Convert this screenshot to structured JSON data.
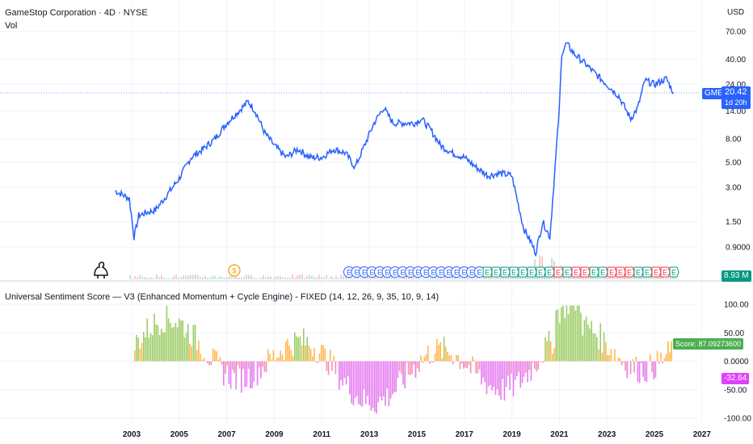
{
  "header": {
    "symbol_title": "GameStop Corporation · 4D · NYSE",
    "volume_label": "Vol",
    "currency": "USD",
    "indicator_title": "Universal Sentiment Score — V3 (Enhanced Momentum + Cycle Engine) - FIXED (14, 12, 26, 9, 35, 10, 9, 14)"
  },
  "price_axis": {
    "ticks": [
      "70.00",
      "40.00",
      "24.00",
      "14.00",
      "8.00",
      "5.00",
      "3.00",
      "1.50",
      "0.9000"
    ],
    "tick_values": [
      70,
      40,
      24,
      14,
      8,
      5,
      3,
      1.5,
      0.9
    ]
  },
  "price_tag": {
    "ticker": "GME",
    "value": "20.42",
    "countdown": "1d 20h",
    "color": "#2962ff"
  },
  "volume_tag": {
    "value": "8.93 M",
    "color": "#089981"
  },
  "oscillator_axis": {
    "ticks": [
      "100.00",
      "50.00",
      "0.0000",
      "-50.00",
      "-100.00"
    ],
    "tick_values": [
      100,
      50,
      0,
      -50,
      -100
    ]
  },
  "score_tag": {
    "label": "Score: 87.09273600",
    "color": "#4caf50"
  },
  "neg_tag": {
    "label": "-32.64",
    "color": "#e040fb"
  },
  "time_axis": {
    "labels": [
      "2003",
      "2005",
      "2007",
      "2009",
      "2011",
      "2013",
      "2015",
      "2017",
      "2019",
      "2021",
      "2023",
      "2025",
      "2027"
    ]
  },
  "chart_data": [
    {
      "type": "line",
      "series": [
        {
          "color": "#2962ff",
          "x": [
            2002.3,
            2002.6,
            2002.9,
            2003.1,
            2003.3,
            2003.6,
            2004.0,
            2004.5,
            2005.0,
            2005.5,
            2006.0,
            2006.5,
            2007.0,
            2007.5,
            2007.9,
            2008.2,
            2008.6,
            2009.0,
            2009.5,
            2010.0,
            2010.5,
            2011.0,
            2011.5,
            2012.0,
            2012.4,
            2012.8,
            2013.2,
            2013.6,
            2014.0,
            2014.5,
            2014.9,
            2015.2,
            2015.6,
            2016.0,
            2016.5,
            2017.0,
            2017.5,
            2018.0,
            2018.5,
            2019.0,
            2019.5,
            2019.8,
            2020.0,
            2020.3,
            2020.6,
            2020.8,
            2021.0,
            2021.1,
            2021.3,
            2021.6,
            2022.0,
            2022.5,
            2023.0,
            2023.5,
            2024.0,
            2024.3,
            2024.6,
            2025.0,
            2025.5,
            2025.8
          ],
          "y": [
            2.8,
            2.6,
            2.4,
            1.1,
            1.7,
            1.8,
            1.9,
            2.6,
            3.6,
            5.5,
            6.5,
            8.0,
            11.0,
            14.0,
            17.0,
            14.0,
            9.0,
            7.0,
            5.5,
            6.5,
            5.5,
            5.5,
            6.5,
            6.0,
            4.5,
            7.0,
            11.0,
            15.0,
            11.0,
            11.0,
            11.0,
            12.0,
            9.5,
            7.0,
            6.0,
            5.5,
            4.5,
            3.8,
            4.0,
            3.8,
            1.3,
            1.0,
            0.8,
            1.5,
            1.1,
            4.0,
            15.0,
            45.0,
            55.0,
            45.0,
            38.0,
            30.0,
            24.0,
            19.0,
            12.0,
            15.0,
            26.0,
            24.0,
            27.0,
            20.42
          ]
        }
      ],
      "y_scale": "log"
    },
    {
      "type": "bar",
      "ylim": [
        -100,
        100
      ]
    }
  ]
}
